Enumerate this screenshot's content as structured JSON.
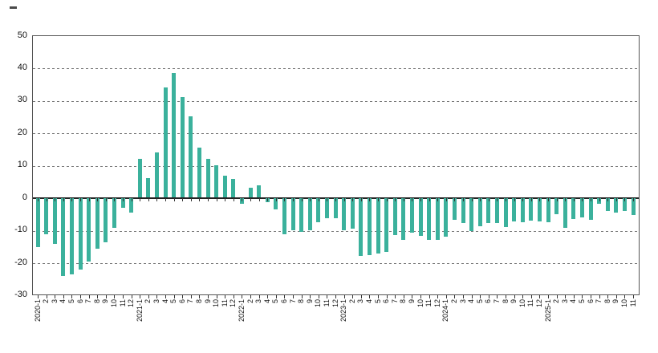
{
  "chart_data": {
    "type": "bar",
    "title": "",
    "xlabel": "",
    "ylabel": "",
    "x": [
      "2020-1",
      "2",
      "3",
      "4",
      "5",
      "6",
      "7",
      "8",
      "9",
      "10",
      "11",
      "12",
      "2021-1",
      "2",
      "3",
      "4",
      "5",
      "6",
      "7",
      "8",
      "9",
      "10",
      "11",
      "12",
      "2022-1",
      "2",
      "3",
      "4",
      "5",
      "6",
      "7",
      "8",
      "9",
      "10",
      "11",
      "12",
      "2023-1",
      "2",
      "3",
      "4",
      "5",
      "6",
      "7",
      "8",
      "9",
      "10",
      "11",
      "12",
      "2024-1",
      "2",
      "3",
      "4",
      "5",
      "6",
      "7",
      "8",
      "9",
      "10",
      "11",
      "12",
      "2025-1",
      "2",
      "3",
      "4",
      "5",
      "6",
      "7",
      "8",
      "9",
      "10",
      "11"
    ],
    "values": [
      -15,
      -11,
      -14,
      -24,
      -23.5,
      -22,
      -19.5,
      -15.5,
      -13.5,
      -9,
      -3,
      -4.5,
      12,
      6,
      14,
      34,
      38.5,
      31,
      25,
      15.5,
      11.8,
      9.9,
      6.8,
      5.8,
      -1.6,
      2.9,
      3.7,
      -1.3,
      -3.3,
      -11,
      -9.8,
      -10.3,
      -9.8,
      -7.3,
      -6.1,
      -6.2,
      -9.8,
      -9.3,
      -17.8,
      -17.4,
      -16.9,
      -16.5,
      -11.3,
      -12.8,
      -10.6,
      -11.5,
      -12.8,
      -12.8,
      -11.8,
      -6.7,
      -7.7,
      -10.1,
      -8.6,
      -7.7,
      -7.7,
      -8.8,
      -7.2,
      -7.4,
      -6.8,
      -7.2,
      -7.4,
      -4.8,
      -9,
      -6.4,
      -6,
      -6.6,
      -1.7,
      -4,
      -4.3,
      -3.9,
      -5.1
    ],
    "ylim": [
      -30,
      50
    ],
    "yticks": [
      50,
      40,
      30,
      20,
      10,
      0,
      -10,
      -20,
      -30
    ],
    "bar_color": "#3BB19C",
    "grid": "horizontal-dashed",
    "legend": "none"
  }
}
